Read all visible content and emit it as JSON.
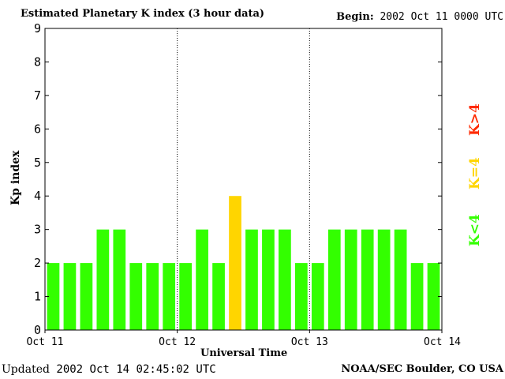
{
  "header": {
    "title": "Estimated Planetary K index (3 hour data)",
    "begin_label": "Begin:",
    "begin_value": "2002 Oct 11 0000 UTC"
  },
  "footer": {
    "updated_label": "Updated",
    "updated_value": "2002 Oct 14 02:45:02 UTC",
    "source": "NOAA/SEC Boulder, CO USA"
  },
  "legend": {
    "gt": {
      "text": "K>4",
      "color": "#ff2a00"
    },
    "eq": {
      "text": "K=4",
      "color": "#ffd500"
    },
    "lt": {
      "text": "K<4",
      "color": "#33ff00"
    }
  },
  "chart_data": {
    "type": "bar",
    "xlabel": "Universal Time",
    "ylabel": "Kp index",
    "ylim": [
      0,
      9
    ],
    "yticks": [
      "0",
      "1",
      "2",
      "3",
      "4",
      "5",
      "6",
      "7",
      "8",
      "9"
    ],
    "xticks": [
      "Oct 11",
      "Oct 12",
      "Oct 13",
      "Oct 14"
    ],
    "day_separators": true,
    "values": [
      2,
      2,
      2,
      3,
      3,
      2,
      2,
      2,
      2,
      3,
      2,
      4,
      3,
      3,
      3,
      2,
      2,
      3,
      3,
      3,
      3,
      3,
      2,
      2
    ]
  }
}
